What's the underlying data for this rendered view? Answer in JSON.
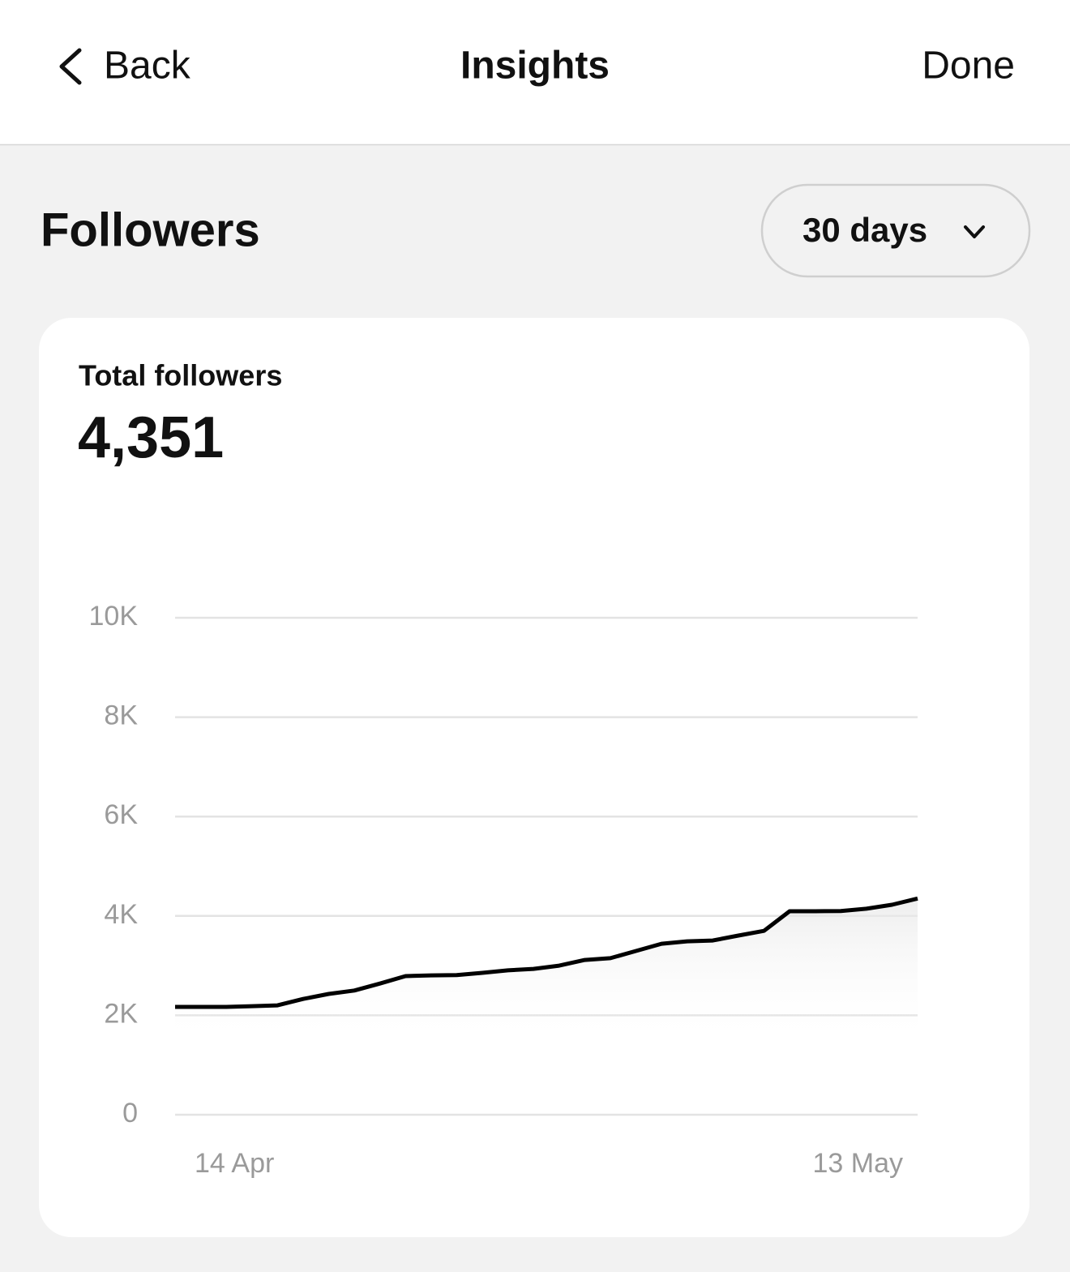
{
  "header": {
    "back": "Back",
    "title": "Insights",
    "done": "Done"
  },
  "section": {
    "title": "Followers",
    "period": "30 days"
  },
  "card": {
    "label": "Total followers",
    "total": "4,351"
  },
  "chart_data": {
    "type": "line",
    "categories": [
      "14 Apr",
      null,
      null,
      null,
      null,
      null,
      null,
      null,
      null,
      null,
      null,
      null,
      null,
      null,
      null,
      null,
      null,
      null,
      null,
      null,
      null,
      null,
      null,
      null,
      null,
      null,
      null,
      null,
      null,
      "13 May"
    ],
    "values": [
      2170,
      2170,
      2170,
      2185,
      2200,
      2330,
      2430,
      2500,
      2640,
      2790,
      2805,
      2810,
      2855,
      2905,
      2935,
      3000,
      3115,
      3150,
      3295,
      3440,
      3490,
      3505,
      3605,
      3700,
      4095,
      4095,
      4100,
      4145,
      4225,
      4351
    ],
    "color": "#000000",
    "ylim": [
      0,
      10000
    ],
    "yticks": [
      0,
      {
        "value": 2000,
        "label": "2K"
      },
      {
        "value": 4000,
        "label": "4K"
      },
      {
        "value": 6000,
        "label": "6K"
      },
      {
        "value": 8000,
        "label": "8K"
      },
      {
        "value": 10000,
        "label": "10K"
      }
    ],
    "grid": true
  }
}
